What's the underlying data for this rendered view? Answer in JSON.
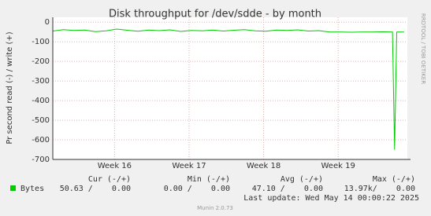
{
  "chart_data": {
    "type": "line",
    "title": "Disk throughput for /dev/sdde - by month",
    "y_label": "Pr second read (-) / write (+)",
    "side_label": "RRDTOOL / TOBI OETIKER",
    "x": [
      0,
      1,
      2,
      3,
      4,
      5,
      6,
      7,
      8,
      9,
      10,
      11,
      12,
      13,
      14,
      15,
      16,
      17,
      18,
      19,
      20,
      21,
      22,
      23,
      24,
      25,
      26,
      27,
      28,
      29,
      30,
      31,
      31.9,
      32.1,
      32.3,
      33
    ],
    "xlim": [
      0,
      33.3
    ],
    "xticks": [
      {
        "value": 5.8,
        "label": "Week 16"
      },
      {
        "value": 12.8,
        "label": "Week 17"
      },
      {
        "value": 19.8,
        "label": "Week 18"
      },
      {
        "value": 26.8,
        "label": "Week 19"
      }
    ],
    "series": [
      {
        "name": "Bytes",
        "color": "#00cc00",
        "values": [
          -45,
          -38,
          -42,
          -40,
          -48,
          -44,
          -35,
          -41,
          -46,
          -40,
          -43,
          -39,
          -47,
          -42,
          -44,
          -40,
          -45,
          -41,
          -38,
          -44,
          -46,
          -40,
          -42,
          -39,
          -45,
          -43,
          -50,
          -50,
          -51,
          -50,
          -50,
          -49,
          -50,
          -650,
          -50,
          -50
        ]
      }
    ],
    "ylim": [
      -700,
      25
    ],
    "yticks": [
      0,
      -100,
      -200,
      -300,
      -400,
      -500,
      -600,
      -700
    ],
    "grid": true,
    "legend_table": {
      "headers": [
        "Cur (-/+)",
        "Min (-/+)",
        "Avg (-/+)",
        "Max (-/+)"
      ],
      "cells": [
        "50.63 /    0.00",
        "0.00 /    0.00",
        "47.10 /    0.00",
        "13.97k/    0.00"
      ]
    },
    "last_update": "Last update: Wed May 14 00:00:22 2025",
    "footer": "Munin 2.0.73"
  }
}
